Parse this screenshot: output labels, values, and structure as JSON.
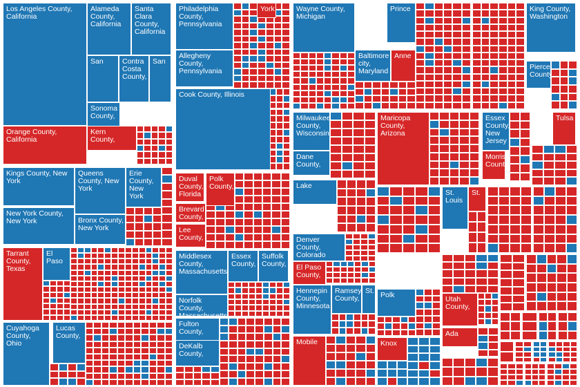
{
  "chart_data": {
    "type": "treemap",
    "title": "",
    "color_meaning": {
      "D": "#1f77b4",
      "R": "#d62728"
    },
    "labeled_tiles": [
      {
        "label": "Los Angeles County,\nCalifornia",
        "party": "D"
      },
      {
        "label": "Alameda\nCounty,\nCalifornia",
        "party": "D"
      },
      {
        "label": "Santa Clara\nCounty,\nCalifornia",
        "party": "D"
      },
      {
        "label": "San",
        "party": "D"
      },
      {
        "label": "Contra\nCosta\nCounty,",
        "party": "D"
      },
      {
        "label": "San",
        "party": "D"
      },
      {
        "label": "Sonoma\nCounty,",
        "party": "D"
      },
      {
        "label": "Orange County, California",
        "party": "R"
      },
      {
        "label": "Kern\nCounty,",
        "party": "R"
      },
      {
        "label": "Philadelphia\nCounty,\nPennsylvania",
        "party": "D"
      },
      {
        "label": "York",
        "party": "R"
      },
      {
        "label": "Allegheny County,\nPennsylvania",
        "party": "D"
      },
      {
        "label": "Wayne County,\nMichigan",
        "party": "D"
      },
      {
        "label": "Prince",
        "party": "D"
      },
      {
        "label": "Baltimore\ncity,\nMaryland",
        "party": "D"
      },
      {
        "label": "Anne",
        "party": "R"
      },
      {
        "label": "King County,\nWashington",
        "party": "D"
      },
      {
        "label": "Pierce\nCounty,",
        "party": "D"
      },
      {
        "label": "Cook County, Illinois",
        "party": "D"
      },
      {
        "label": "Kings County, New\nYork",
        "party": "D"
      },
      {
        "label": "Queens\nCounty, New\nYork",
        "party": "D"
      },
      {
        "label": "Erie\nCounty,\nNew York",
        "party": "D"
      },
      {
        "label": "New York County,\nNew York",
        "party": "D"
      },
      {
        "label": "Bronx County,\nNew York",
        "party": "D"
      },
      {
        "label": "Duval\nCounty,\nFlorida",
        "party": "R"
      },
      {
        "label": "Polk\nCounty,",
        "party": "R"
      },
      {
        "label": "Brevard\nCounty,",
        "party": "R"
      },
      {
        "label": "Lee\nCounty,",
        "party": "R"
      },
      {
        "label": "Milwaukee\nCounty,\nWisconsin",
        "party": "D"
      },
      {
        "label": "Dane\nCounty,",
        "party": "D"
      },
      {
        "label": "Maricopa\nCounty, Arizona",
        "party": "R"
      },
      {
        "label": "Essex\nCounty,\nNew\nJersey",
        "party": "D"
      },
      {
        "label": "Morris\nCounty,",
        "party": "R"
      },
      {
        "label": "Tulsa",
        "party": "R"
      },
      {
        "label": "Lake",
        "party": "D"
      },
      {
        "label": "St.\nLouis",
        "party": "D"
      },
      {
        "label": "St.",
        "party": "R"
      },
      {
        "label": "Tarrant\nCounty,\nTexas",
        "party": "R"
      },
      {
        "label": "El\nPaso",
        "party": "D"
      },
      {
        "label": "Middlesex\nCounty,\nMassachusetts",
        "party": "D"
      },
      {
        "label": "Essex\nCounty,",
        "party": "D"
      },
      {
        "label": "Suffolk\nCounty,",
        "party": "D"
      },
      {
        "label": "Norfolk County,\nMassachusetts",
        "party": "D"
      },
      {
        "label": "Denver\nCounty,\nColorado",
        "party": "D"
      },
      {
        "label": "El Paso\nCounty,",
        "party": "R"
      },
      {
        "label": "Hennepin\nCounty,\nMinnesota",
        "party": "D"
      },
      {
        "label": "Ramsey\nCounty,",
        "party": "D"
      },
      {
        "label": "St.",
        "party": "D"
      },
      {
        "label": "Polk",
        "party": "D"
      },
      {
        "label": "Utah\nCounty,",
        "party": "R"
      },
      {
        "label": "Cuyahoga\nCounty, Ohio",
        "party": "D"
      },
      {
        "label": "Lucas\nCounty,",
        "party": "D"
      },
      {
        "label": "Fulton\nCounty,",
        "party": "D"
      },
      {
        "label": "DeKalb\nCounty,",
        "party": "D"
      },
      {
        "label": "Mobile",
        "party": "R"
      },
      {
        "label": "Knox",
        "party": "R"
      },
      {
        "label": "Ada",
        "party": "R"
      }
    ],
    "unlabeled_groups": [
      {
        "party": "R"
      },
      {
        "party": "R"
      },
      {
        "party": "R"
      },
      {
        "party": "R"
      },
      {
        "party": "R"
      },
      {
        "party": "R"
      },
      {
        "party": "R"
      },
      {
        "party": "R"
      },
      {
        "party": "R"
      },
      {
        "party": "R"
      },
      {
        "party": "R"
      },
      {
        "party": "R"
      },
      {
        "party": "R"
      },
      {
        "party": "R"
      },
      {
        "party": "R"
      },
      {
        "party": "R"
      },
      {
        "party": "R"
      },
      {
        "party": "R"
      },
      {
        "party": "R"
      },
      {
        "party": "R"
      },
      {
        "party": "R"
      },
      {
        "party": "R"
      },
      {
        "party": "R"
      },
      {
        "party": "R"
      },
      {
        "party": "R"
      },
      {
        "party": "R"
      },
      {
        "party": "R"
      },
      {
        "party": "R"
      },
      {
        "party": "R"
      },
      {
        "party": "R"
      },
      {
        "party": "R"
      },
      {
        "party": "R"
      },
      {
        "party": "R"
      },
      {
        "party": "R"
      },
      {
        "party": "R"
      },
      {
        "party": "D"
      },
      {
        "party": "D"
      },
      {
        "party": "R"
      },
      {
        "party": "R"
      },
      {
        "party": "R"
      },
      {
        "party": "R"
      },
      {
        "party": "R"
      },
      {
        "party": "R"
      },
      {
        "party": "R"
      },
      {
        "party": "R"
      },
      {
        "party": "R"
      },
      {
        "party": "R"
      },
      {
        "party": "R"
      },
      {
        "party": "D"
      },
      {
        "party": "R"
      },
      {
        "party": "R"
      },
      {
        "party": "R"
      },
      {
        "party": "R"
      },
      {
        "party": "R"
      }
    ]
  }
}
